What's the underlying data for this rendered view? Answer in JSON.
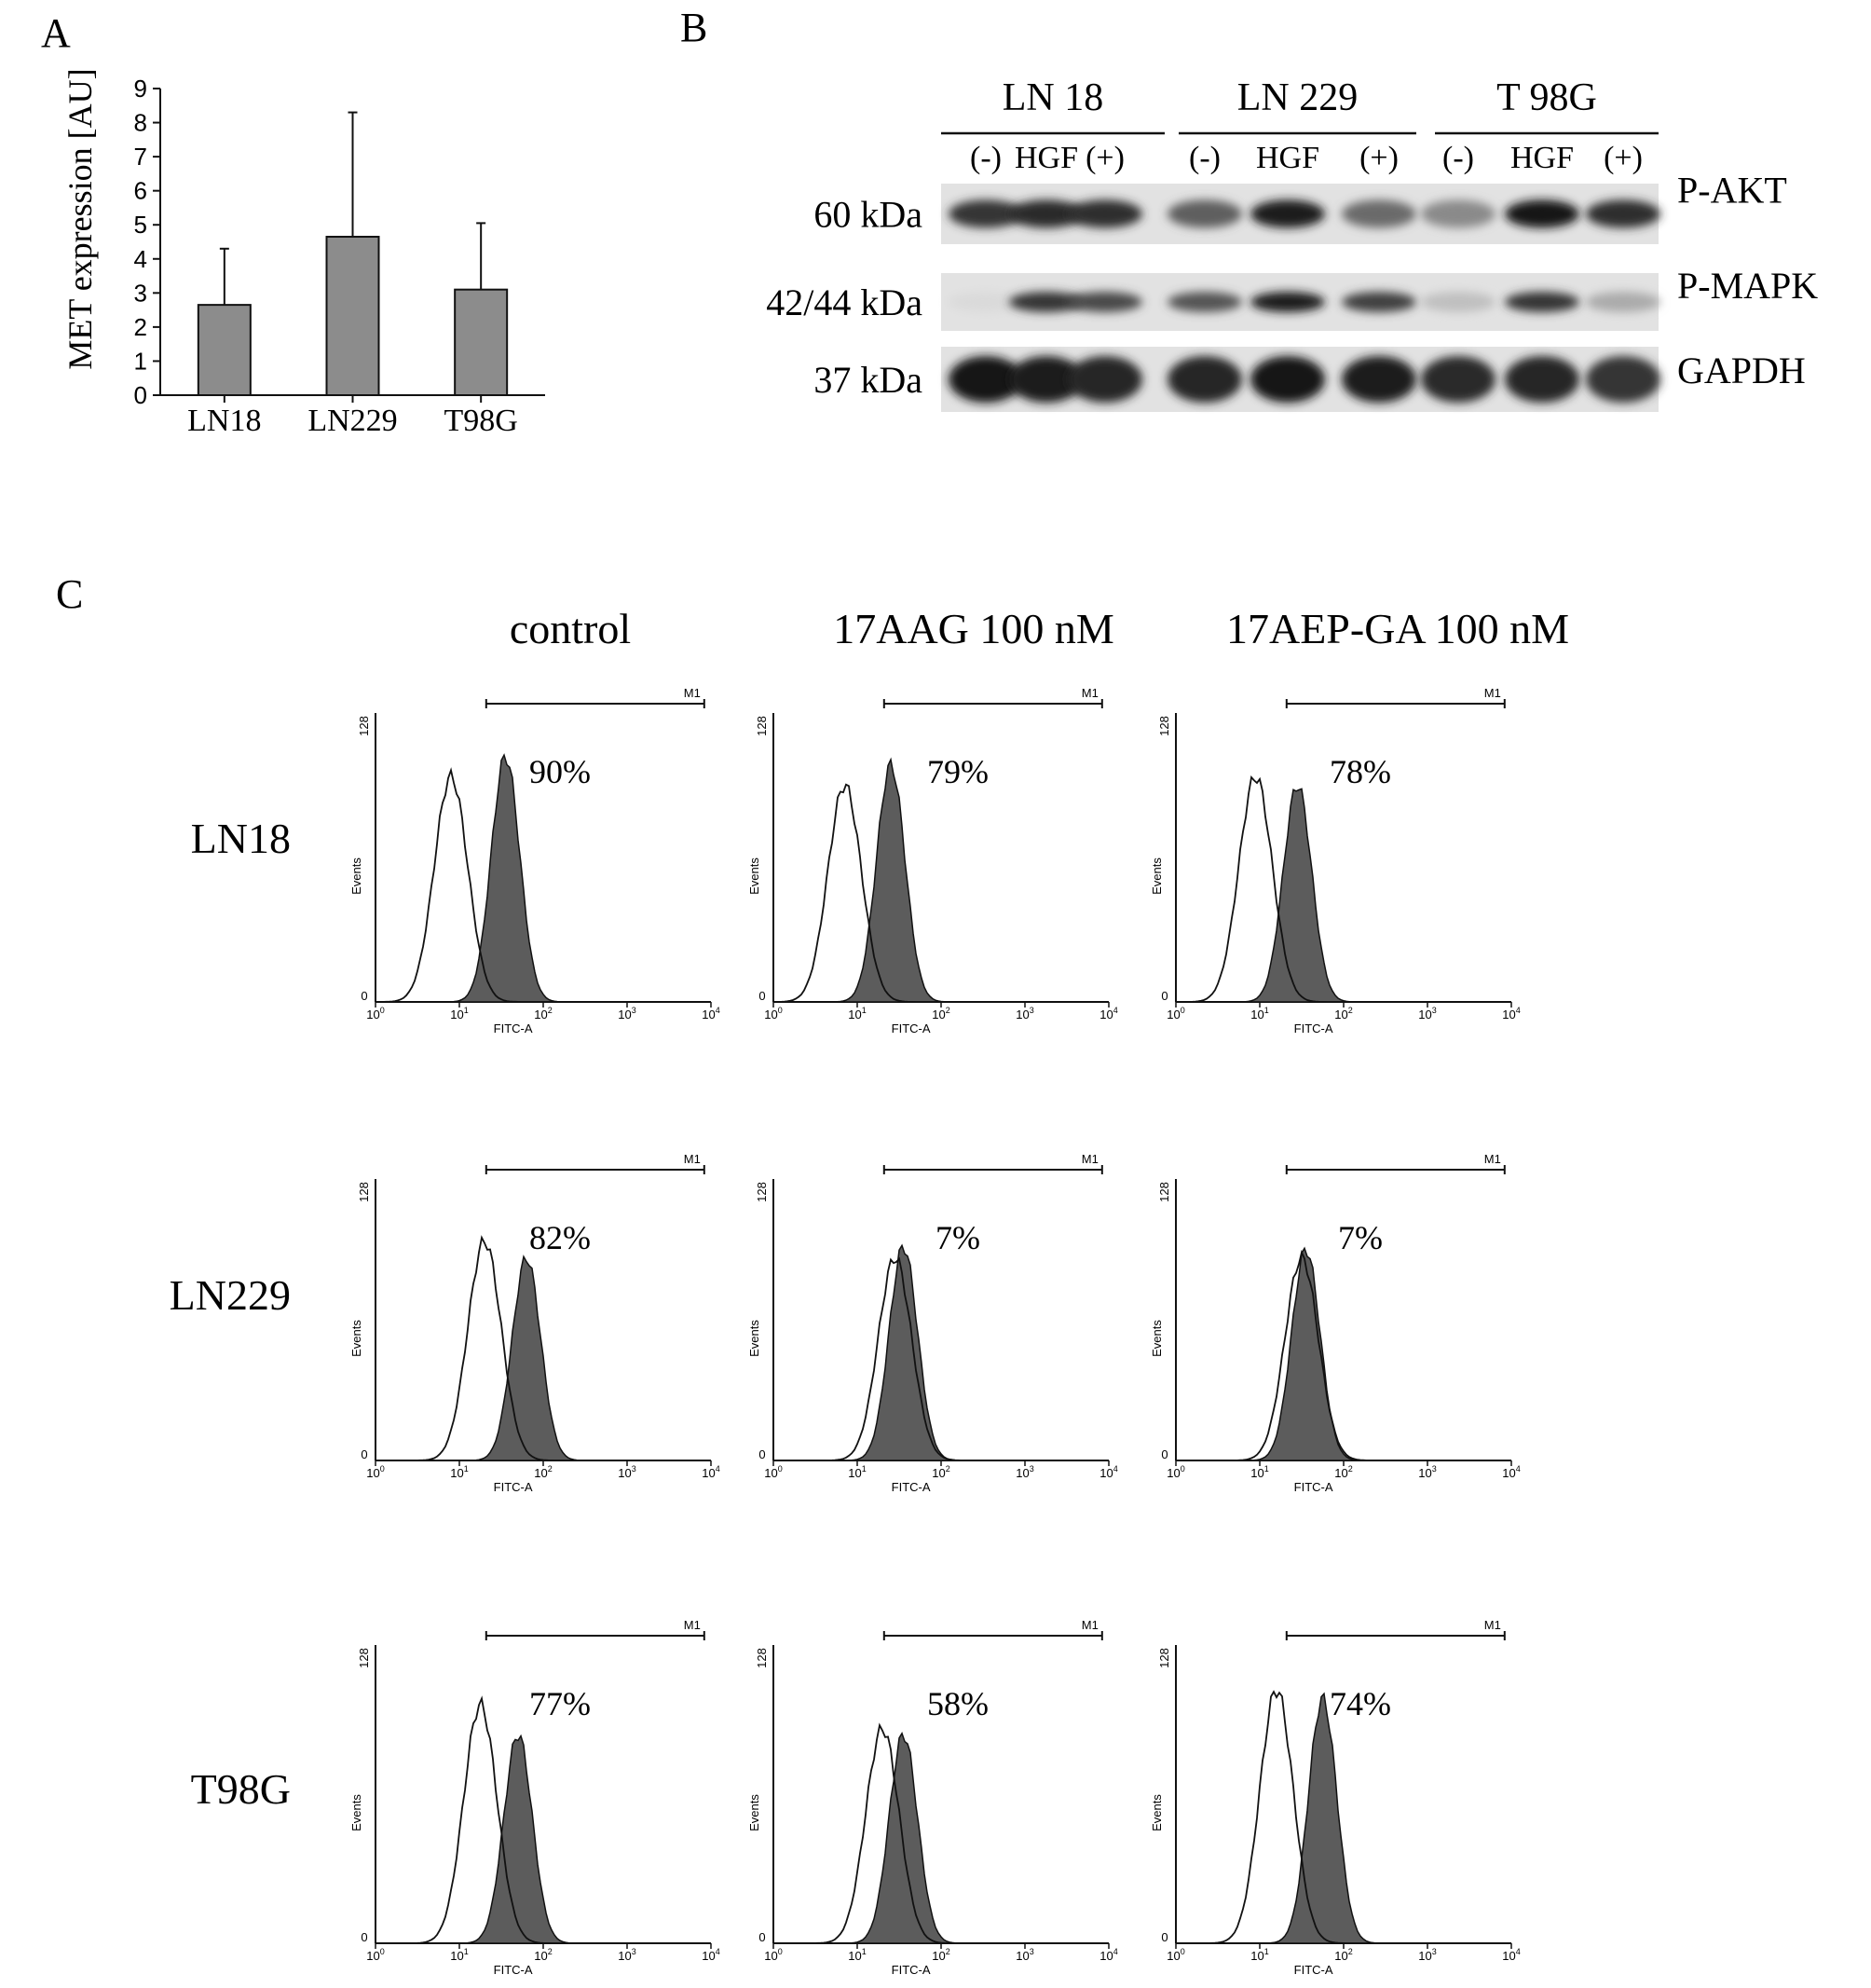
{
  "panel_labels": {
    "a": "A",
    "b": "B",
    "c": "C"
  },
  "chart_data": [
    {
      "type": "bar",
      "ylabel": "MET expression [AU]",
      "categories": [
        "LN18",
        "LN229",
        "T98G"
      ],
      "values": [
        2.65,
        4.65,
        3.1
      ],
      "errors": [
        1.65,
        3.65,
        1.95
      ],
      "ylim": [
        0,
        9
      ],
      "yticks": [
        "0",
        "1",
        "2",
        "3",
        "4",
        "5",
        "6",
        "7",
        "8",
        "9"
      ],
      "bar_color": "#8c8c8c"
    },
    {
      "type": "blot",
      "cell_lines": [
        "LN 18",
        "LN 229",
        "T 98G"
      ],
      "lane_labels": [
        "(-)",
        "HGF",
        "(+)"
      ],
      "rows": [
        {
          "size": "60 kDa",
          "protein": "P-AKT",
          "intensity": [
            0.85,
            0.9,
            0.88,
            0.65,
            0.95,
            0.6,
            0.45,
            0.98,
            0.88
          ]
        },
        {
          "size": "42/44 kDa",
          "protein": "P-MAPK",
          "intensity": [
            0.08,
            0.85,
            0.75,
            0.7,
            0.95,
            0.8,
            0.2,
            0.85,
            0.3
          ]
        },
        {
          "size": "37 kDa",
          "protein": "GAPDH",
          "intensity": [
            0.98,
            0.95,
            0.92,
            0.92,
            0.98,
            0.95,
            0.9,
            0.92,
            0.85
          ]
        }
      ]
    },
    {
      "type": "histogram",
      "conditions": [
        "control",
        "17AAG 100 nM",
        "17AEP-GA 100 nM"
      ],
      "cell_lines": [
        "LN18",
        "LN229",
        "T98G"
      ],
      "ytick_max": "128",
      "ylabel": "Events",
      "xlabel": "FITC-A",
      "gate_label": "M1",
      "xticks_mantissa": "10",
      "xticks_exp": [
        "0",
        "1",
        "2",
        "3",
        "4"
      ],
      "percent": [
        [
          "90%",
          "79%",
          "78%"
        ],
        [
          "82%",
          "7%",
          "7%"
        ],
        [
          "77%",
          "58%",
          "74%"
        ]
      ],
      "control_peak_log": [
        [
          0.9,
          0.85,
          0.95
        ],
        [
          1.3,
          1.45,
          1.5
        ],
        [
          1.25,
          1.3,
          1.2
        ]
      ],
      "stained_peak_log": [
        [
          1.55,
          1.4,
          1.45
        ],
        [
          1.8,
          1.55,
          1.55
        ],
        [
          1.7,
          1.55,
          1.75
        ]
      ],
      "control_height": [
        [
          0.78,
          0.75,
          0.78
        ],
        [
          0.78,
          0.72,
          0.72
        ],
        [
          0.8,
          0.72,
          0.85
        ]
      ],
      "stained_height": [
        [
          0.85,
          0.82,
          0.75
        ],
        [
          0.72,
          0.76,
          0.75
        ],
        [
          0.7,
          0.7,
          0.82
        ]
      ]
    }
  ]
}
